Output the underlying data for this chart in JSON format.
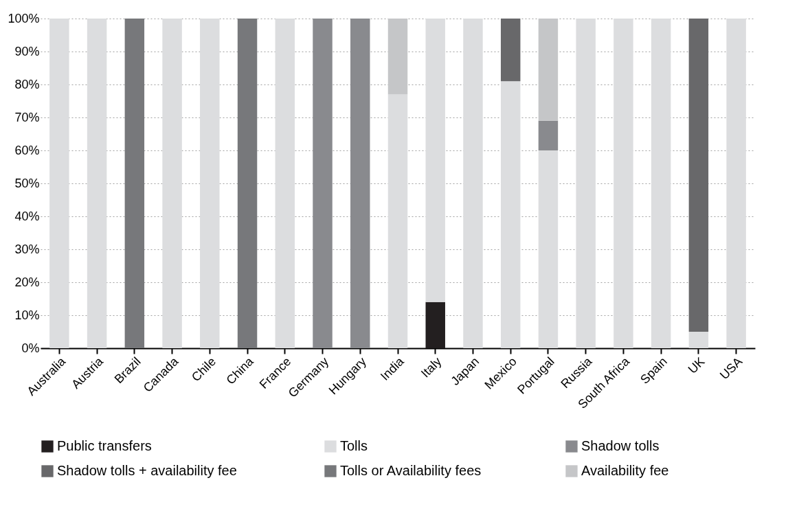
{
  "chart_data": {
    "type": "bar",
    "stacked": true,
    "categories": [
      "Australia",
      "Austria",
      "Brazil",
      "Canada",
      "Chile",
      "China",
      "France",
      "Germany",
      "Hungary",
      "India",
      "Italy",
      "Japan",
      "Mexico",
      "Portugal",
      "Russia",
      "South Africa",
      "Spain",
      "UK",
      "USA"
    ],
    "series": [
      {
        "name": "Public transfers",
        "color": "#231f20",
        "values": [
          0,
          0,
          0,
          0,
          0,
          0,
          0,
          0,
          0,
          0,
          14,
          0,
          0,
          0,
          0,
          0,
          0,
          0,
          0
        ]
      },
      {
        "name": "Tolls",
        "color": "#dcdddf",
        "values": [
          100,
          100,
          0,
          100,
          100,
          0,
          100,
          0,
          0,
          77,
          86,
          100,
          81,
          60,
          100,
          100,
          100,
          5,
          100
        ]
      },
      {
        "name": "Shadow tolls",
        "color": "#898a8e",
        "values": [
          0,
          0,
          0,
          0,
          0,
          0,
          0,
          100,
          100,
          0,
          0,
          0,
          0,
          9,
          0,
          0,
          0,
          0,
          0
        ]
      },
      {
        "name": "Shadow tolls + availability  fee",
        "color": "#68686a",
        "values": [
          0,
          0,
          0,
          0,
          0,
          0,
          0,
          0,
          0,
          0,
          0,
          0,
          19,
          0,
          0,
          0,
          0,
          95,
          0
        ]
      },
      {
        "name": "Tolls or Availability fees",
        "color": "#77787b",
        "values": [
          0,
          0,
          100,
          0,
          0,
          100,
          0,
          0,
          0,
          0,
          0,
          0,
          0,
          0,
          0,
          0,
          0,
          0,
          0
        ]
      },
      {
        "name": "Availability fee",
        "color": "#c5c6c8",
        "values": [
          0,
          0,
          0,
          0,
          0,
          0,
          0,
          0,
          0,
          23,
          0,
          0,
          0,
          31,
          0,
          0,
          0,
          0,
          0
        ]
      }
    ],
    "ylim": [
      0,
      100
    ],
    "yticks": [
      {
        "value": 0,
        "label": "0%"
      },
      {
        "value": 10,
        "label": "10%"
      },
      {
        "value": 20,
        "label": "20%"
      },
      {
        "value": 30,
        "label": "30%"
      },
      {
        "value": 40,
        "label": "40%"
      },
      {
        "value": 50,
        "label": "50%"
      },
      {
        "value": 60,
        "label": "60%"
      },
      {
        "value": 70,
        "label": "70%"
      },
      {
        "value": 80,
        "label": "80%"
      },
      {
        "value": 90,
        "label": "90%"
      },
      {
        "value": 100,
        "label": "100%"
      }
    ],
    "grid": "y",
    "legend": "bottom"
  }
}
